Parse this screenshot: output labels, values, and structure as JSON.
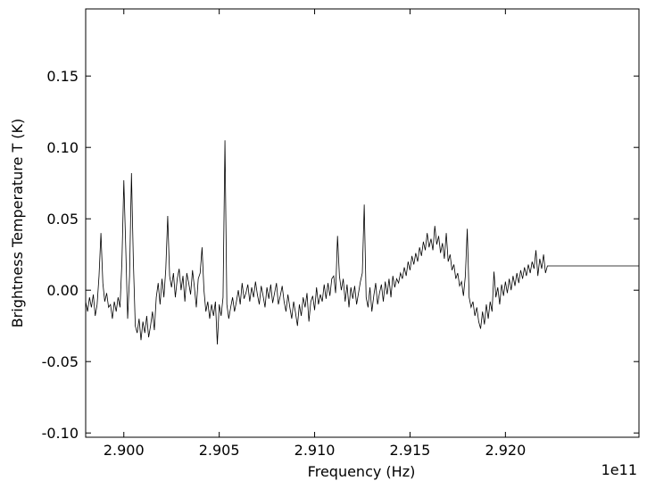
{
  "chart_data": {
    "type": "line",
    "ylabel": "Brightness Temperature T (K)",
    "xlabel": "Frequency (Hz)",
    "x_offset_label": "1e11",
    "color": "#000000",
    "xlim": [
      2.898,
      2.927
    ],
    "ylim": [
      -0.103,
      0.197
    ],
    "xticks": [
      {
        "value": 2.9,
        "label": "2.900"
      },
      {
        "value": 2.905,
        "label": "2.905"
      },
      {
        "value": 2.91,
        "label": "2.910"
      },
      {
        "value": 2.915,
        "label": "2.915"
      },
      {
        "value": 2.92,
        "label": "2.920"
      }
    ],
    "yticks": [
      {
        "value": -0.1,
        "label": "-0.10"
      },
      {
        "value": -0.05,
        "label": "-0.05"
      },
      {
        "value": 0,
        "label": "0.00"
      },
      {
        "value": 0.05,
        "label": "0.05"
      },
      {
        "value": 0.1,
        "label": "0.10"
      },
      {
        "value": 0.15,
        "label": "0.15"
      }
    ],
    "x": [
      2.898,
      2.8981,
      2.8982,
      2.8983,
      2.8984,
      2.8985,
      2.8986,
      2.8987,
      2.8988,
      2.8989,
      2.899,
      2.8991,
      2.8992,
      2.8993,
      2.8994,
      2.8995,
      2.8996,
      2.8997,
      2.8998,
      2.8999,
      2.9,
      2.9001,
      2.9002,
      2.9003,
      2.9004,
      2.9005,
      2.9006,
      2.9007,
      2.9008,
      2.9009,
      2.901,
      2.9011,
      2.9012,
      2.9013,
      2.9014,
      2.9015,
      2.9016,
      2.9017,
      2.9018,
      2.9019,
      2.902,
      2.9021,
      2.9022,
      2.9023,
      2.9024,
      2.9025,
      2.9026,
      2.9027,
      2.9028,
      2.9029,
      2.903,
      2.9031,
      2.9032,
      2.9033,
      2.9034,
      2.9035,
      2.9036,
      2.9037,
      2.9038,
      2.9039,
      2.904,
      2.9041,
      2.9042,
      2.9043,
      2.9044,
      2.9045,
      2.9046,
      2.9047,
      2.9048,
      2.9049,
      2.905,
      2.9051,
      2.9052,
      2.9053,
      2.9054,
      2.9055,
      2.9056,
      2.9057,
      2.9058,
      2.9059,
      2.906,
      2.9061,
      2.9062,
      2.9063,
      2.9064,
      2.9065,
      2.9066,
      2.9067,
      2.9068,
      2.9069,
      2.907,
      2.9071,
      2.9072,
      2.9073,
      2.9074,
      2.9075,
      2.9076,
      2.9077,
      2.9078,
      2.9079,
      2.908,
      2.9081,
      2.9082,
      2.9083,
      2.9084,
      2.9085,
      2.9086,
      2.9087,
      2.9088,
      2.9089,
      2.909,
      2.9091,
      2.9092,
      2.9093,
      2.9094,
      2.9095,
      2.9096,
      2.9097,
      2.9098,
      2.9099,
      2.91,
      2.9101,
      2.9102,
      2.9103,
      2.9104,
      2.9105,
      2.9106,
      2.9107,
      2.9108,
      2.9109,
      2.911,
      2.9111,
      2.9112,
      2.9113,
      2.9114,
      2.9115,
      2.9116,
      2.9117,
      2.9118,
      2.9119,
      2.912,
      2.9121,
      2.9122,
      2.9123,
      2.9124,
      2.9125,
      2.9126,
      2.9127,
      2.9128,
      2.9129,
      2.913,
      2.9131,
      2.9132,
      2.9133,
      2.9134,
      2.9135,
      2.9136,
      2.9137,
      2.9138,
      2.9139,
      2.914,
      2.9141,
      2.9142,
      2.9143,
      2.9144,
      2.9145,
      2.9146,
      2.9147,
      2.9148,
      2.9149,
      2.915,
      2.9151,
      2.9152,
      2.9153,
      2.9154,
      2.9155,
      2.9156,
      2.9157,
      2.9158,
      2.9159,
      2.916,
      2.9161,
      2.9162,
      2.9163,
      2.9164,
      2.9165,
      2.9166,
      2.9167,
      2.9168,
      2.9169,
      2.917,
      2.9171,
      2.9172,
      2.9173,
      2.9174,
      2.9175,
      2.9176,
      2.9177,
      2.9178,
      2.9179,
      2.918,
      2.9181,
      2.9182,
      2.9183,
      2.9184,
      2.9185,
      2.9186,
      2.9187,
      2.9188,
      2.9189,
      2.919,
      2.9191,
      2.9192,
      2.9193,
      2.9194,
      2.9195,
      2.9196,
      2.9197,
      2.9198,
      2.9199,
      2.92,
      2.9201,
      2.9202,
      2.9203,
      2.9204,
      2.9205,
      2.9206,
      2.9207,
      2.9208,
      2.9209,
      2.921,
      2.9211,
      2.9212,
      2.9213,
      2.9214,
      2.9215,
      2.9216,
      2.9217,
      2.9218,
      2.9219,
      2.922,
      2.9221,
      2.9222,
      2.927
    ],
    "values": [
      -0.008,
      -0.015,
      -0.005,
      -0.012,
      -0.003,
      -0.018,
      -0.01,
      0.01,
      0.04,
      0.005,
      -0.008,
      -0.002,
      -0.012,
      -0.01,
      -0.02,
      -0.008,
      -0.015,
      -0.005,
      -0.012,
      0.02,
      0.077,
      0.03,
      -0.02,
      0.01,
      0.082,
      0.02,
      -0.025,
      -0.03,
      -0.02,
      -0.035,
      -0.022,
      -0.03,
      -0.018,
      -0.033,
      -0.025,
      -0.015,
      -0.028,
      -0.005,
      0.005,
      -0.01,
      0.008,
      -0.005,
      0.015,
      0.052,
      0.01,
      0.002,
      0.012,
      -0.005,
      0.008,
      0.015,
      0.0,
      0.01,
      -0.008,
      0.012,
      0.005,
      -0.003,
      0.014,
      0.002,
      -0.012,
      0.008,
      0.012,
      0.03,
      0.0,
      -0.015,
      -0.008,
      -0.02,
      -0.01,
      -0.018,
      -0.008,
      -0.038,
      -0.01,
      -0.018,
      -0.005,
      0.105,
      -0.01,
      -0.02,
      -0.012,
      -0.005,
      -0.015,
      -0.008,
      0.0,
      -0.01,
      0.005,
      -0.006,
      -0.002,
      0.004,
      -0.008,
      0.002,
      -0.005,
      0.006,
      -0.003,
      -0.01,
      0.003,
      -0.004,
      -0.012,
      0.002,
      -0.006,
      0.004,
      -0.009,
      -0.002,
      0.005,
      -0.01,
      -0.004,
      0.003,
      -0.008,
      -0.015,
      -0.003,
      -0.012,
      -0.02,
      -0.008,
      -0.016,
      -0.025,
      -0.01,
      -0.018,
      -0.005,
      -0.012,
      -0.002,
      -0.022,
      -0.008,
      -0.004,
      -0.014,
      0.002,
      -0.01,
      -0.003,
      -0.008,
      0.004,
      -0.006,
      0.005,
      -0.004,
      0.008,
      0.01,
      -0.002,
      0.038,
      0.01,
      0.0,
      0.008,
      -0.008,
      0.004,
      -0.012,
      0.002,
      -0.006,
      0.003,
      -0.01,
      -0.002,
      0.006,
      0.012,
      0.06,
      -0.005,
      -0.012,
      0.002,
      -0.015,
      -0.004,
      0.005,
      -0.01,
      -0.002,
      0.004,
      -0.008,
      0.006,
      -0.003,
      0.008,
      -0.005,
      0.01,
      0.002,
      0.008,
      0.005,
      0.012,
      0.008,
      0.016,
      0.01,
      0.02,
      0.014,
      0.024,
      0.018,
      0.026,
      0.02,
      0.03,
      0.024,
      0.034,
      0.028,
      0.04,
      0.03,
      0.036,
      0.028,
      0.045,
      0.032,
      0.038,
      0.026,
      0.033,
      0.022,
      0.04,
      0.02,
      0.025,
      0.014,
      0.018,
      0.008,
      0.012,
      0.003,
      0.006,
      -0.004,
      0.01,
      0.043,
      -0.005,
      -0.012,
      -0.008,
      -0.018,
      -0.012,
      -0.022,
      -0.027,
      -0.015,
      -0.024,
      -0.01,
      -0.02,
      -0.008,
      -0.015,
      0.013,
      -0.005,
      0.002,
      -0.01,
      0.004,
      -0.004,
      0.006,
      -0.002,
      0.008,
      0.0,
      0.01,
      0.003,
      0.012,
      0.005,
      0.014,
      0.008,
      0.016,
      0.01,
      0.018,
      0.012,
      0.02,
      0.015,
      0.028,
      0.01,
      0.022,
      0.015,
      0.025,
      0.012,
      0.017,
      0.017
    ]
  }
}
